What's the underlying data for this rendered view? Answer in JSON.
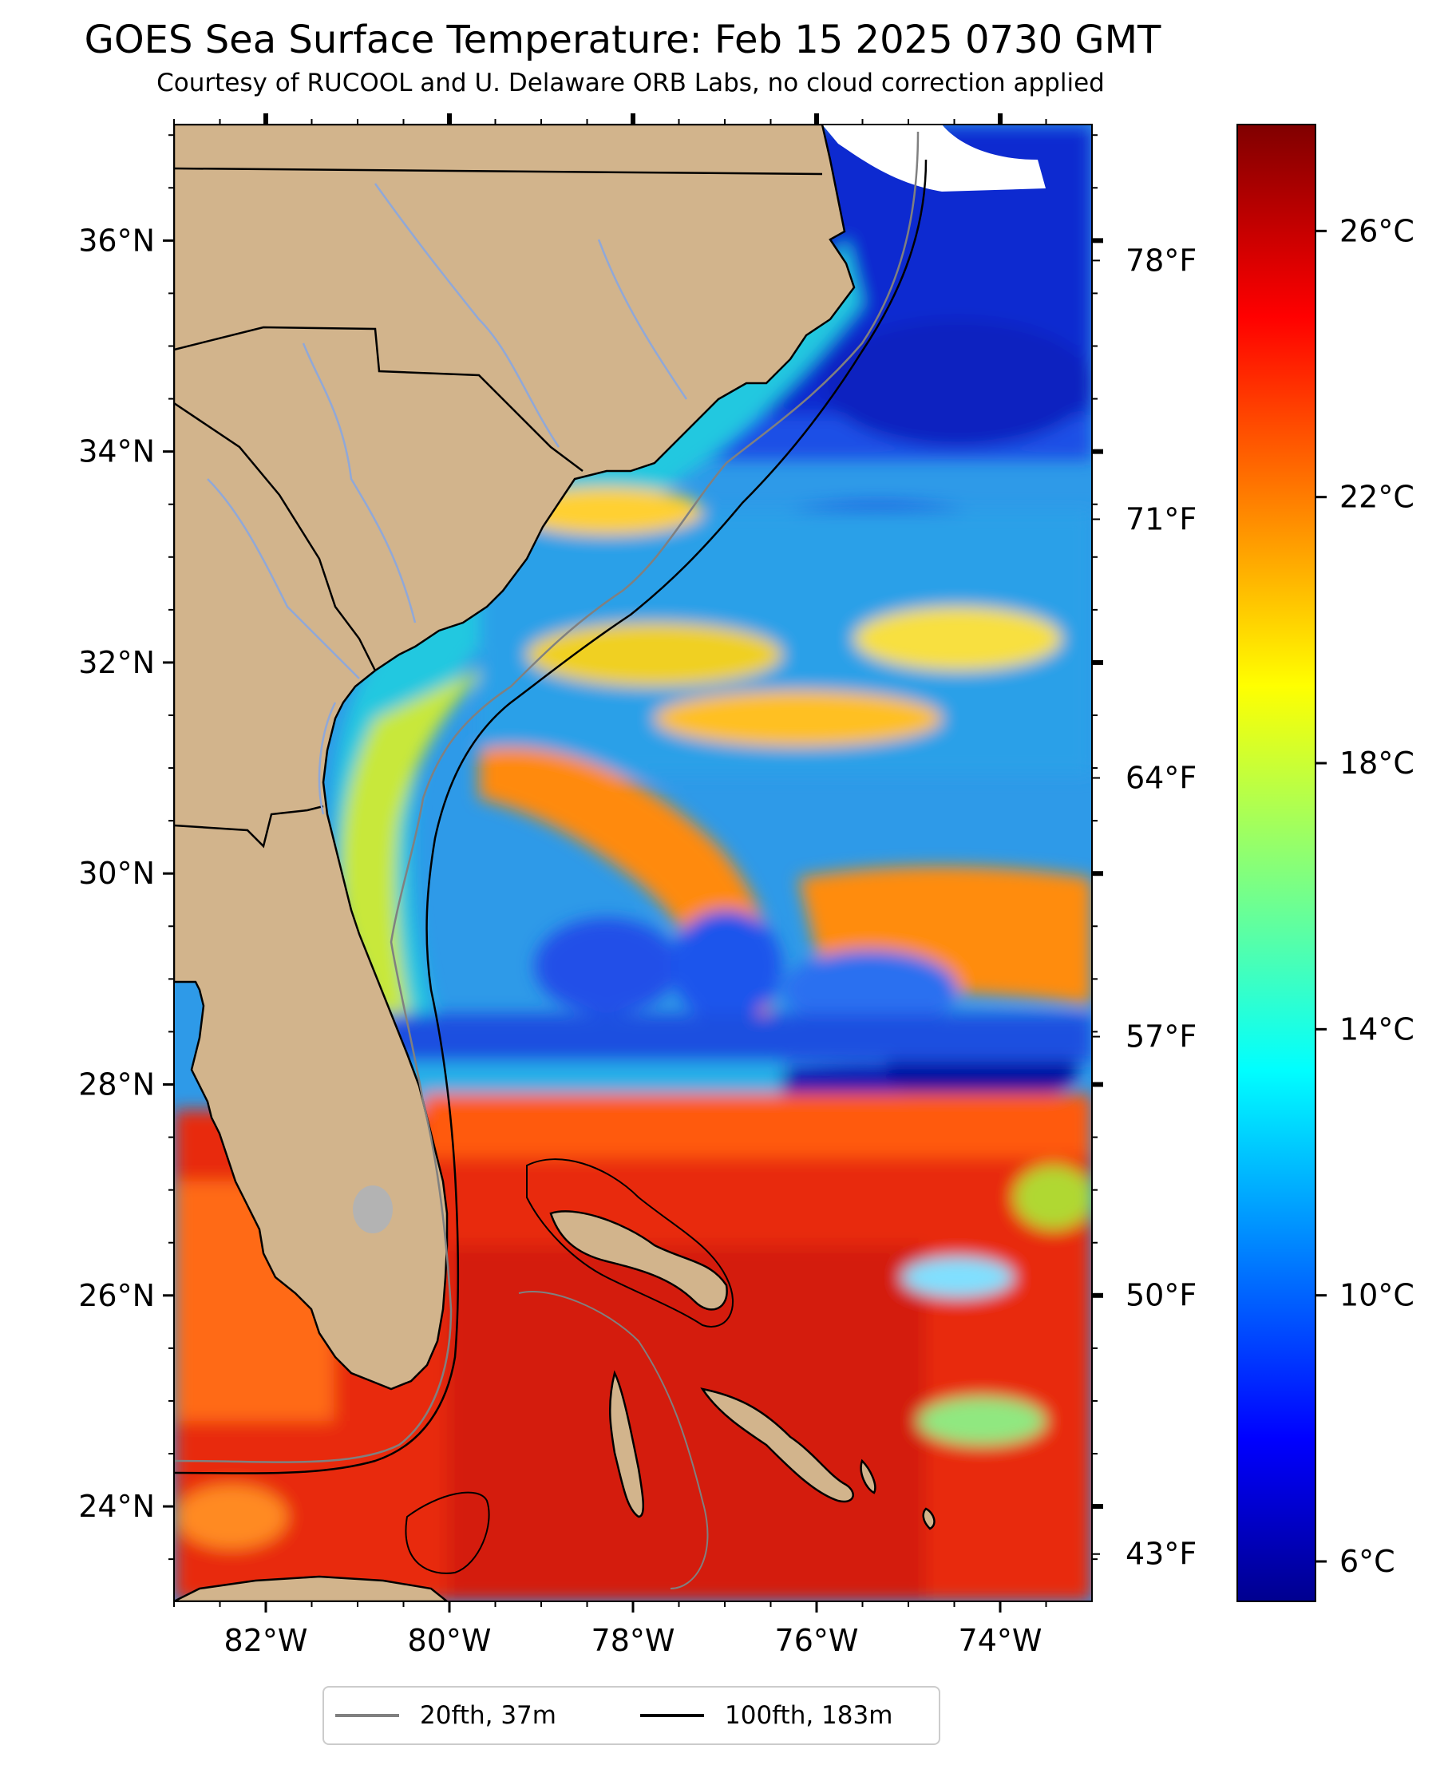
{
  "title": "GOES Sea Surface Temperature: Feb 15 2025 0730 GMT",
  "subtitle": "Courtesy of RUCOOL and U. Delaware ORB Labs, no cloud correction applied",
  "map": {
    "lon_range": [
      -83.0,
      -73.0
    ],
    "lat_range": [
      23.1,
      37.1
    ],
    "lat_ticks": [
      {
        "value": 36,
        "label": "36°N"
      },
      {
        "value": 34,
        "label": "34°N"
      },
      {
        "value": 32,
        "label": "32°N"
      },
      {
        "value": 30,
        "label": "30°N"
      },
      {
        "value": 28,
        "label": "28°N"
      },
      {
        "value": 26,
        "label": "26°N"
      },
      {
        "value": 24,
        "label": "24°N"
      }
    ],
    "lon_ticks": [
      {
        "value": -82,
        "label": "82°W"
      },
      {
        "value": -80,
        "label": "80°W"
      },
      {
        "value": -78,
        "label": "78°W"
      },
      {
        "value": -76,
        "label": "76°W"
      },
      {
        "value": -74,
        "label": "74°W"
      }
    ],
    "colors": {
      "land": "#d2b48c",
      "ocean_cold": "#0a1fd8",
      "ocean_mid": "#22bfe6",
      "ocean_warm": "#ff8c00",
      "ocean_hot": "#e0200a",
      "isobath_20fth": "#808080",
      "isobath_100fth": "#000000",
      "rivers": "#90a8d8",
      "lake": "#b3b3b3"
    }
  },
  "colorbar": {
    "celsius_range": [
      5.4,
      27.6
    ],
    "celsius_ticks": [
      {
        "value": 26,
        "label": "26°C"
      },
      {
        "value": 22,
        "label": "22°C"
      },
      {
        "value": 18,
        "label": "18°C"
      },
      {
        "value": 14,
        "label": "14°C"
      },
      {
        "value": 10,
        "label": "10°C"
      },
      {
        "value": 6,
        "label": "6°C"
      }
    ],
    "fahrenheit_ticks": [
      {
        "value": 78,
        "label": "78°F"
      },
      {
        "value": 71,
        "label": "71°F"
      },
      {
        "value": 64,
        "label": "64°F"
      },
      {
        "value": 57,
        "label": "57°F"
      },
      {
        "value": 50,
        "label": "50°F"
      },
      {
        "value": 43,
        "label": "43°F"
      }
    ],
    "colormap": "jet"
  },
  "legend": {
    "items": [
      {
        "label": "20fth, 37m",
        "color": "#808080"
      },
      {
        "label": "100fth, 183m",
        "color": "#000000"
      }
    ]
  }
}
